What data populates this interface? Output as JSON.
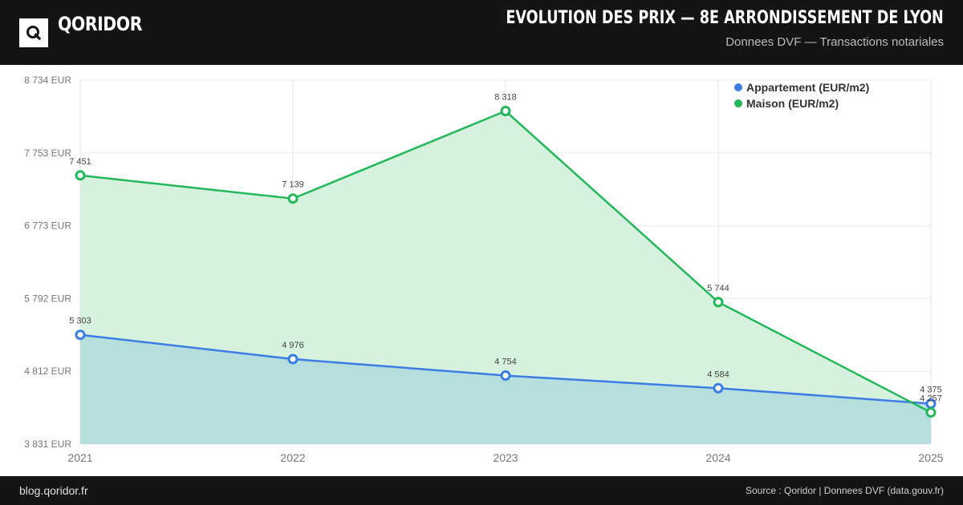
{
  "header": {
    "logo_letter": "Q",
    "brand": "QORIDOR",
    "title": "EVOLUTION DES PRIX — 8E ARRONDISSEMENT DE LYON",
    "subtitle": "Donnees DVF — Transactions notariales"
  },
  "footer": {
    "left": "blog.qoridor.fr",
    "right": "Source : Qoridor | Donnees DVF (data.gouv.fr)"
  },
  "chart_data": {
    "type": "area",
    "categories": [
      "2021",
      "2022",
      "2023",
      "2024",
      "2025"
    ],
    "y_ticks": [
      "8 734 EUR",
      "7 753 EUR",
      "6 773 EUR",
      "5 792 EUR",
      "4 812 EUR",
      "3 831 EUR"
    ],
    "ylim": [
      3831,
      8734
    ],
    "grid": true,
    "legend_position": "top-right",
    "series": [
      {
        "name": "Appartement (EUR/m2)",
        "color": "#3b7de3",
        "fill": "#b3dcdc",
        "values": [
          5303,
          4976,
          4754,
          4584,
          4375
        ],
        "labels": [
          "5 303",
          "4 976",
          "4 754",
          "4 584",
          "4 375"
        ]
      },
      {
        "name": "Maison (EUR/m2)",
        "color": "#22b85a",
        "fill": "#d1f1dc",
        "values": [
          7451,
          7139,
          8318,
          5744,
          4257
        ],
        "labels": [
          "7 451",
          "7 139",
          "8 318",
          "5 744",
          "4 257"
        ]
      }
    ]
  }
}
